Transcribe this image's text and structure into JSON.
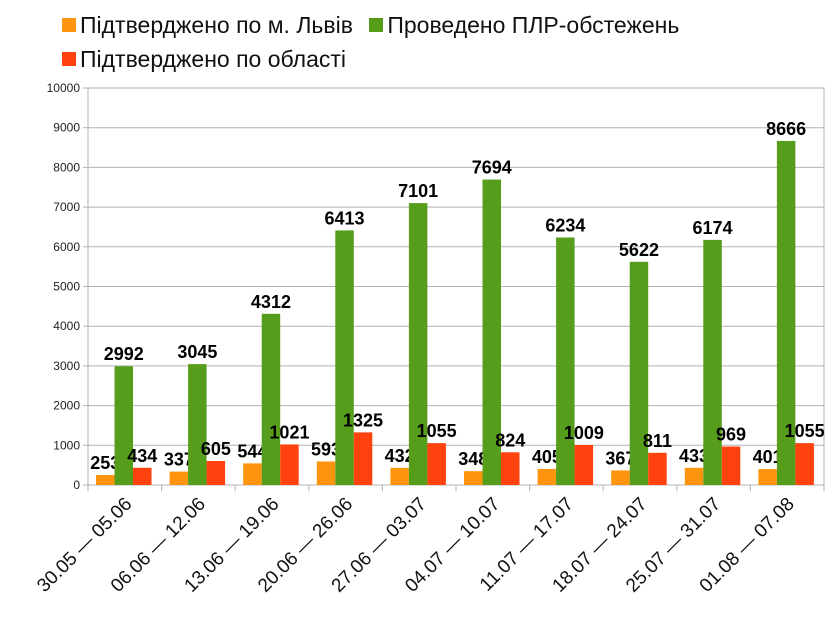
{
  "chart_data": {
    "type": "bar",
    "title": "",
    "xlabel": "",
    "ylabel": "",
    "ylim": [
      0,
      10000
    ],
    "yticks": [
      0,
      1000,
      2000,
      3000,
      4000,
      5000,
      6000,
      7000,
      8000,
      9000,
      10000
    ],
    "grid": true,
    "legend_position": "top",
    "categories": [
      "30.05 — 05.06",
      "06.06 — 12.06",
      "13.06 — 19.06",
      "20.06 — 26.06",
      "27.06 — 03.07",
      "04.07 — 10.07",
      "11.07 — 17.07",
      "18.07 — 24.07",
      "25.07 — 31.07",
      "01.08 — 07.08"
    ],
    "series": [
      {
        "name": "Підтверджено по м. Львів",
        "color": "#ff950e",
        "values": [
          253,
          337,
          544,
          593,
          432,
          348,
          405,
          367,
          433,
          401
        ]
      },
      {
        "name": "Проведено ПЛР-обстежень",
        "color": "#579d1c",
        "values": [
          2992,
          3045,
          4312,
          6413,
          7101,
          7694,
          6234,
          5622,
          6174,
          8666
        ]
      },
      {
        "name": "Підтверджено по області",
        "color": "#ff420e",
        "values": [
          434,
          605,
          1021,
          1325,
          1055,
          824,
          1009,
          811,
          969,
          1055
        ]
      }
    ]
  }
}
